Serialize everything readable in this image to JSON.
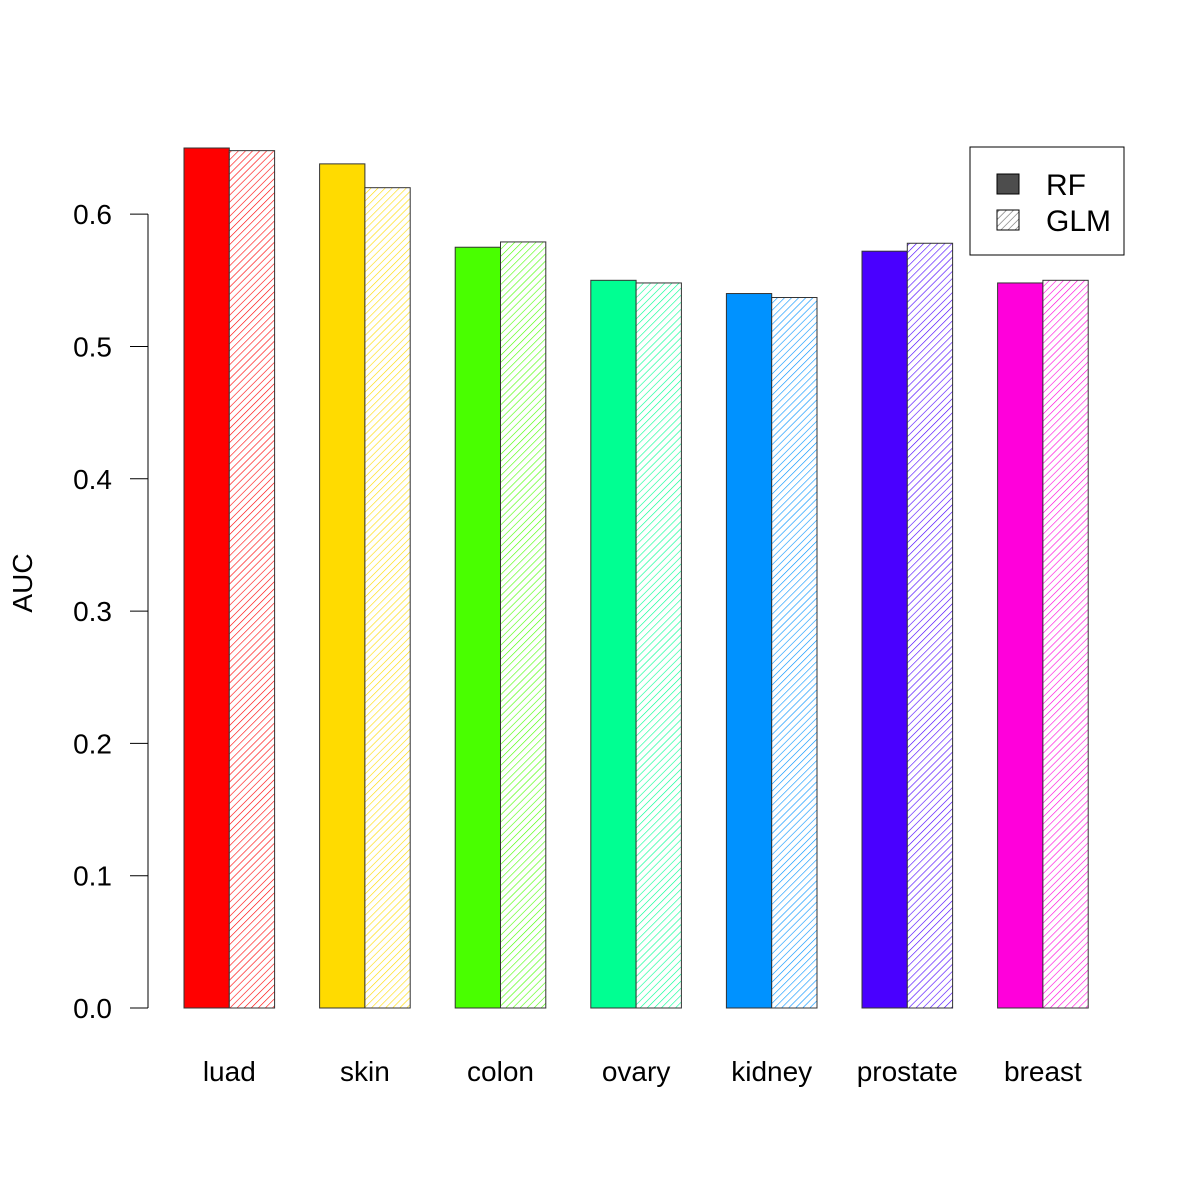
{
  "chart_data": {
    "type": "bar",
    "title": "",
    "xlabel": "",
    "ylabel": "AUC",
    "ylim": [
      0,
      0.65
    ],
    "yticks": [
      "0.0",
      "0.1",
      "0.2",
      "0.3",
      "0.4",
      "0.5",
      "0.6"
    ],
    "grid": false,
    "legend_position": "top-right",
    "categories": [
      "luad",
      "skin",
      "colon",
      "ovary",
      "kidney",
      "prostate",
      "breast"
    ],
    "category_colors": [
      "#FF0000",
      "#FFDB00",
      "#49FF00",
      "#00FF92",
      "#0092FF",
      "#4900FF",
      "#FF00DB"
    ],
    "series": [
      {
        "name": "RF",
        "pattern": "solid",
        "values": [
          0.65,
          0.638,
          0.575,
          0.55,
          0.54,
          0.572,
          0.548
        ]
      },
      {
        "name": "GLM",
        "pattern": "hatched",
        "values": [
          0.648,
          0.62,
          0.579,
          0.548,
          0.537,
          0.578,
          0.55
        ]
      }
    ],
    "legend": [
      {
        "label": "RF",
        "swatch_color": "#4D4D4D",
        "pattern": "solid"
      },
      {
        "label": "GLM",
        "swatch_color": "#666666",
        "pattern": "hatched"
      }
    ]
  }
}
